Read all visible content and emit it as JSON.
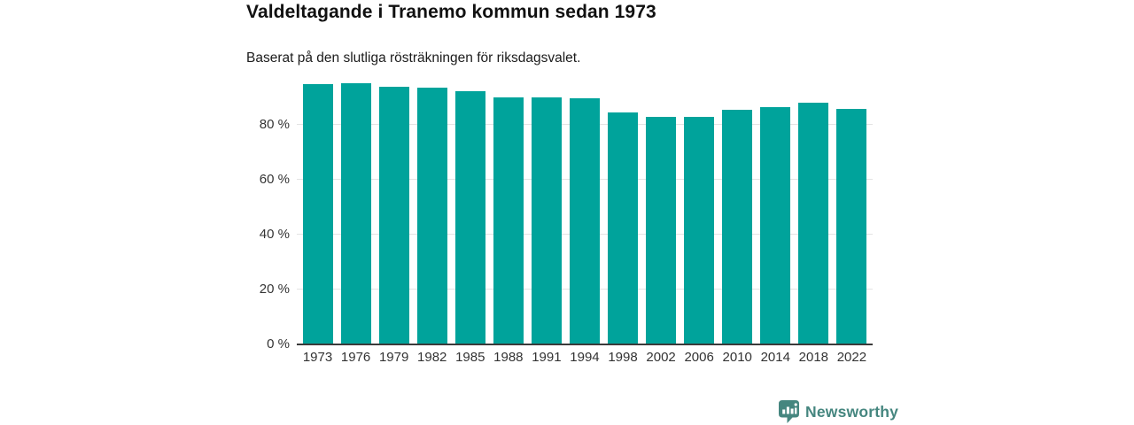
{
  "header": {
    "title": "Valdeltagande i Tranemo kommun sedan 1973",
    "subtitle": "Baserat på den slutliga rösträkningen för riksdagsvalet."
  },
  "chart_data": {
    "type": "bar",
    "title": "Valdeltagande i Tranemo kommun sedan 1973",
    "subtitle": "Baserat på den slutliga rösträkningen för riksdagsvalet.",
    "categories": [
      "1973",
      "1976",
      "1979",
      "1982",
      "1985",
      "1988",
      "1991",
      "1994",
      "1998",
      "2002",
      "2006",
      "2010",
      "2014",
      "2018",
      "2022"
    ],
    "values": [
      94.7,
      95.1,
      93.9,
      93.5,
      92.3,
      90.1,
      90.0,
      89.7,
      84.4,
      83.0,
      82.9,
      85.6,
      86.5,
      88.2,
      85.7
    ],
    "unit": "%",
    "xlabel": "",
    "ylabel": "",
    "ylim": [
      0,
      100
    ],
    "y_ticks": [
      {
        "value": 0,
        "label": "0 %"
      },
      {
        "value": 20,
        "label": "20 %"
      },
      {
        "value": 40,
        "label": "40 %"
      },
      {
        "value": 60,
        "label": "60 %"
      },
      {
        "value": 80,
        "label": "80 %"
      }
    ],
    "grid": true,
    "legend_position": "none",
    "bar_color": "#00a39b",
    "gridline_color": "#e3e3e3",
    "axis_line_color": "#3a3a3a",
    "tick_text_color": "#333333"
  },
  "branding": {
    "name": "Newsworthy",
    "logo_icon": "bar-chart-speech-bubble-icon",
    "text_color": "#45867f",
    "icon_color": "#45867f"
  }
}
